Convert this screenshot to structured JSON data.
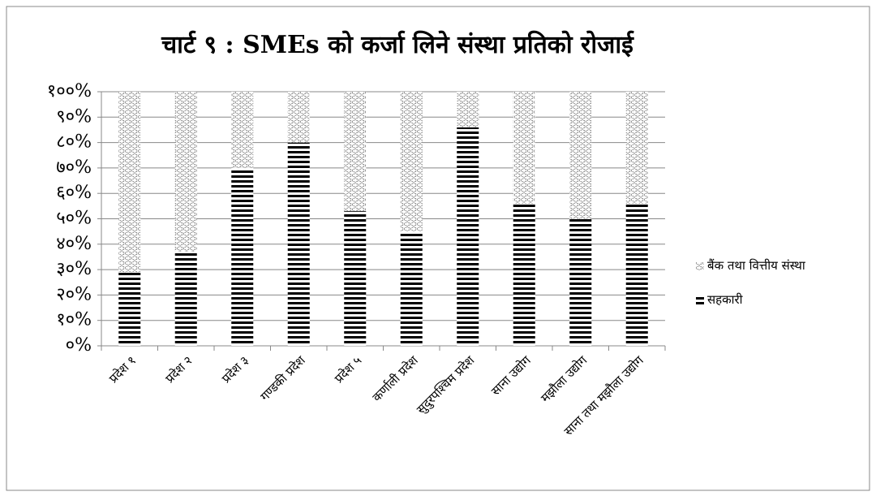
{
  "chart_data": {
    "type": "stacked_bar_percent",
    "title": "चार्ट ९ : SMEs को कर्जा लिने संस्था प्रतिको रोजाई",
    "categories": [
      "प्रदेश १",
      "प्रदेश २",
      "प्रदेश ३",
      "गण्डकी प्रदेश",
      "प्रदेश ५",
      "कर्णाली प्रदेश",
      "सुदुरपश्चिम प्रदेश",
      "साना उद्योग",
      "मझौला उद्योग",
      "साना तथा मझौला उद्योग"
    ],
    "series": [
      {
        "name": "सहकारी",
        "color": "#000000",
        "values": [
          29,
          37,
          70,
          80,
          53,
          45,
          86,
          56,
          50,
          56
        ]
      },
      {
        "name": "बैंक तथा वित्तीय संस्था",
        "color": "#555555",
        "values": [
          71,
          63,
          30,
          20,
          47,
          55,
          14,
          44,
          50,
          44
        ]
      }
    ],
    "ylim": [
      0,
      100
    ],
    "yticks": [
      {
        "value": 0,
        "label": "०%"
      },
      {
        "value": 10,
        "label": "१०%"
      },
      {
        "value": 20,
        "label": "२०%"
      },
      {
        "value": 30,
        "label": "३०%"
      },
      {
        "value": 40,
        "label": "४०%"
      },
      {
        "value": 50,
        "label": "५०%"
      },
      {
        "value": 60,
        "label": "६०%"
      },
      {
        "value": 70,
        "label": "७०%"
      },
      {
        "value": 80,
        "label": "८०%"
      },
      {
        "value": 90,
        "label": "९०%"
      },
      {
        "value": 100,
        "label": "१००%"
      }
    ],
    "grid": true,
    "legend": "right"
  }
}
